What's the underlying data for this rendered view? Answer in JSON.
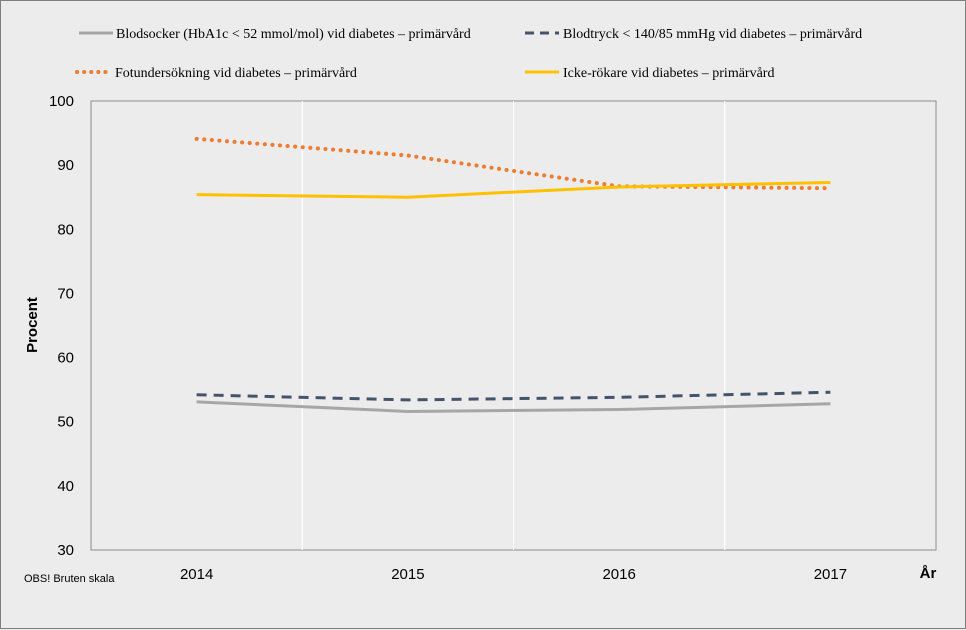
{
  "chart_data": {
    "type": "line",
    "title": "",
    "xlabel": "År",
    "ylabel": "Procent",
    "note": "OBS! Bruten skala",
    "categories": [
      "2014",
      "2015",
      "2016",
      "2017"
    ],
    "ylim": [
      30,
      100
    ],
    "yticks": [
      30,
      40,
      50,
      60,
      70,
      80,
      90,
      100
    ],
    "grid": "vertical",
    "legend_position": "top",
    "series": [
      {
        "name": "Blodsocker (HbA1c < 52 mmol/mol) vid diabetes – primärvård",
        "color": "#a6a6a6",
        "style": "solid",
        "values": [
          53.1,
          51.6,
          51.9,
          52.8
        ]
      },
      {
        "name": "Blodtryck < 140/85 mmHg vid diabetes – primärvård",
        "color": "#44546a",
        "style": "dashed",
        "values": [
          54.2,
          53.4,
          53.8,
          54.6
        ]
      },
      {
        "name": "Fotundersökning vid diabetes – primärvård",
        "color": "#ed7d31",
        "style": "dotted",
        "values": [
          94.1,
          91.5,
          86.7,
          86.4
        ]
      },
      {
        "name": "Icke-rökare vid diabetes – primärvård",
        "color": "#ffc000",
        "style": "solid",
        "values": [
          85.4,
          85.0,
          86.6,
          87.3
        ]
      }
    ]
  }
}
